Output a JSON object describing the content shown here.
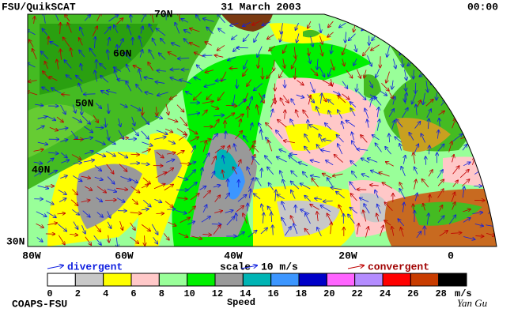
{
  "header": {
    "left": "FSU/QuikSCAT",
    "date": "31 March 2003",
    "time": "00:00"
  },
  "lat_labels": [
    "70N",
    "60N",
    "50N",
    "40N",
    "30N"
  ],
  "lon_labels": [
    "80W",
    "60W",
    "40W",
    "20W",
    "0"
  ],
  "legend": {
    "divergent": "divergent",
    "scale": "scale",
    "scale_value": "10 m/s",
    "convergent": "convergent"
  },
  "colorbar": {
    "ticks": [
      0,
      2,
      4,
      6,
      8,
      10,
      12,
      14,
      16,
      18,
      20,
      22,
      24,
      26,
      28
    ],
    "unit": "m/s",
    "label": "Speed",
    "colors": [
      "#ffffff",
      "#c8c8c8",
      "#ffff00",
      "#ffc8c8",
      "#99ff99",
      "#00f000",
      "#999999",
      "#00b4b4",
      "#3c96ff",
      "#0000c8",
      "#ff64ff",
      "#b48cff",
      "#ff0000",
      "#c83c00",
      "#000000"
    ]
  },
  "footer": {
    "left": "COAPS-FSU",
    "signature": "Yan Gu"
  }
}
